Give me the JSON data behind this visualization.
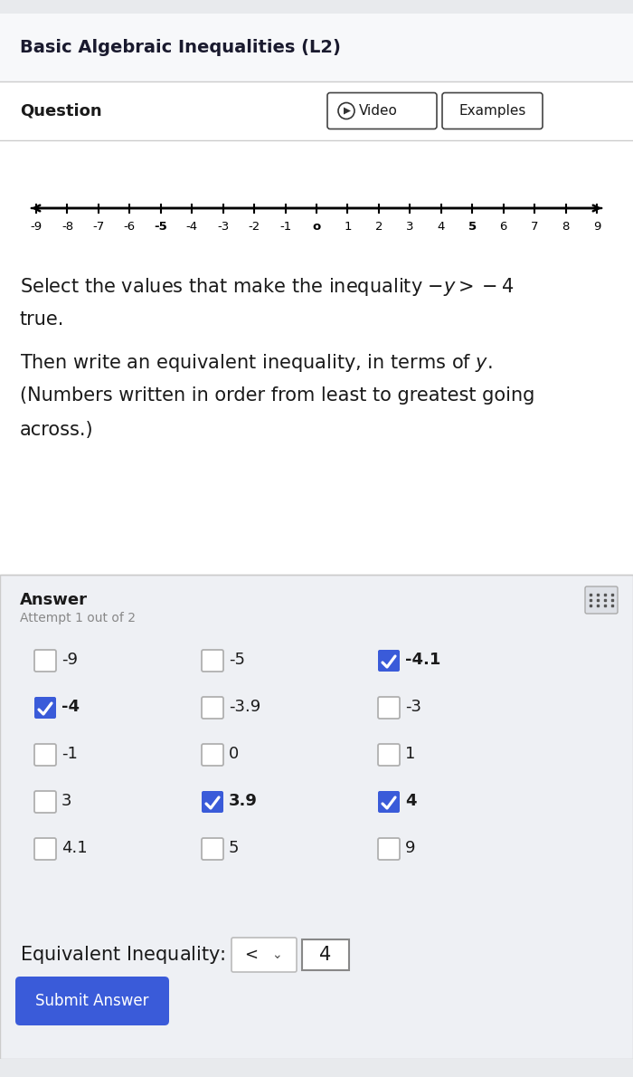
{
  "title": "Basic Algebraic Inequalities (L2)",
  "title_fontsize": 14,
  "title_color": "#1a1a2e",
  "bg_color": "#ffffff",
  "section_bg": "#eef0f4",
  "question_label": "Question",
  "video_label": "Video",
  "examples_label": "Examples",
  "number_line_ticks": [
    -9,
    -8,
    -7,
    -6,
    -5,
    -4,
    -3,
    -2,
    -1,
    0,
    1,
    2,
    3,
    4,
    5,
    6,
    7,
    8,
    9
  ],
  "bold_ticks": [
    -5,
    0,
    5
  ],
  "answer_label": "Answer",
  "attempt_label": "Attempt 1 out of 2",
  "checkbox_items": [
    {
      "label": "-9",
      "row": 0,
      "col": 0,
      "checked": false
    },
    {
      "label": "-5",
      "row": 0,
      "col": 1,
      "checked": false
    },
    {
      "label": "-4.1",
      "row": 0,
      "col": 2,
      "checked": true
    },
    {
      "label": "-4",
      "row": 1,
      "col": 0,
      "checked": true
    },
    {
      "label": "-3.9",
      "row": 1,
      "col": 1,
      "checked": false
    },
    {
      "label": "-3",
      "row": 1,
      "col": 2,
      "checked": false
    },
    {
      "label": "-1",
      "row": 2,
      "col": 0,
      "checked": false
    },
    {
      "label": "0",
      "row": 2,
      "col": 1,
      "checked": false
    },
    {
      "label": "1",
      "row": 2,
      "col": 2,
      "checked": false
    },
    {
      "label": "3",
      "row": 3,
      "col": 0,
      "checked": false
    },
    {
      "label": "3.9",
      "row": 3,
      "col": 1,
      "checked": true
    },
    {
      "label": "4",
      "row": 3,
      "col": 2,
      "checked": true
    },
    {
      "label": "4.1",
      "row": 4,
      "col": 0,
      "checked": false
    },
    {
      "label": "5",
      "row": 4,
      "col": 1,
      "checked": false
    },
    {
      "label": "9",
      "row": 4,
      "col": 2,
      "checked": false
    }
  ],
  "checkbox_blue": "#3a5bd9",
  "checkbox_unchecked_border": "#b0b0b0",
  "equiv_val": "4",
  "submit_label": "Submit Answer",
  "submit_bg": "#3a5bd9",
  "submit_text_color": "#ffffff",
  "body_text_color": "#1a1a1a",
  "gray_text_color": "#888888",
  "divider_color": "#cccccc"
}
